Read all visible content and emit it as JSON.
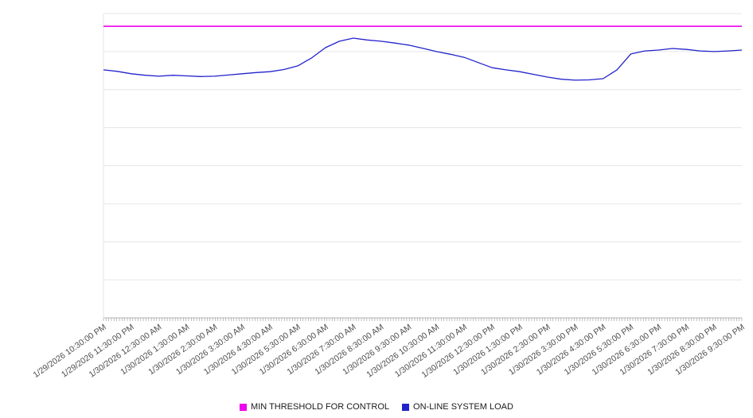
{
  "chart": {
    "background": "#ffffff",
    "grid_color": "#e6e6e6",
    "axis_color": "#b3b3b3",
    "tick_color": "#999999",
    "label_color": "#4d4d4d"
  },
  "legend": {
    "items": [
      {
        "label": "MIN THRESHOLD FOR CONTROL",
        "color": "#ee00ee"
      },
      {
        "label": "ON-LINE SYSTEM LOAD",
        "color": "#2222cc"
      }
    ]
  },
  "chart_data": {
    "type": "line",
    "title": "",
    "xlabel": "",
    "ylabel": "",
    "ylim": [
      0,
      100
    ],
    "grid": "horizontal",
    "legend_position": "bottom",
    "y_axis_labels_visible": false,
    "x_label_every": 2,
    "x_tick_labels": [
      "1/29/2026 10:30:00 PM",
      "1/29/2026 11:30:00 PM",
      "1/30/2026 12:30:00 AM",
      "1/30/2026 1:30:00 AM",
      "1/30/2026 2:30:00 AM",
      "1/30/2026 3:30:00 AM",
      "1/30/2026 4:30:00 AM",
      "1/30/2026 5:30:00 AM",
      "1/30/2026 6:30:00 AM",
      "1/30/2026 7:30:00 AM",
      "1/30/2026 8:30:00 AM",
      "1/30/2026 9:30:00 AM",
      "1/30/2026 10:30:00 AM",
      "1/30/2026 11:30:00 AM",
      "1/30/2026 12:30:00 PM",
      "1/30/2026 1:30:00 PM",
      "1/30/2026 2:30:00 PM",
      "1/30/2026 3:30:00 PM",
      "1/30/2026 4:30:00 PM",
      "1/30/2026 5:30:00 PM",
      "1/30/2026 6:30:00 PM",
      "1/30/2026 7:30:00 PM",
      "1/30/2026 8:30:00 PM",
      "1/30/2026 9:30:00 PM"
    ],
    "series": [
      {
        "name": "MIN THRESHOLD FOR CONTROL",
        "color": "#ee00ee",
        "constant_value": 95.8
      },
      {
        "name": "ON-LINE SYSTEM LOAD",
        "color": "#2222cc",
        "values": [
          81.5,
          81.0,
          80.2,
          79.7,
          79.4,
          79.7,
          79.5,
          79.3,
          79.4,
          79.8,
          80.2,
          80.6,
          80.9,
          81.6,
          82.8,
          85.4,
          88.8,
          90.9,
          91.9,
          91.3,
          90.9,
          90.3,
          89.6,
          88.6,
          87.5,
          86.6,
          85.6,
          83.9,
          82.2,
          81.5,
          80.9,
          80.0,
          79.1,
          78.4,
          78.1,
          78.2,
          78.6,
          81.5,
          86.7,
          87.7,
          88.0,
          88.5,
          88.2,
          87.7,
          87.5,
          87.7,
          88.0
        ]
      }
    ]
  }
}
